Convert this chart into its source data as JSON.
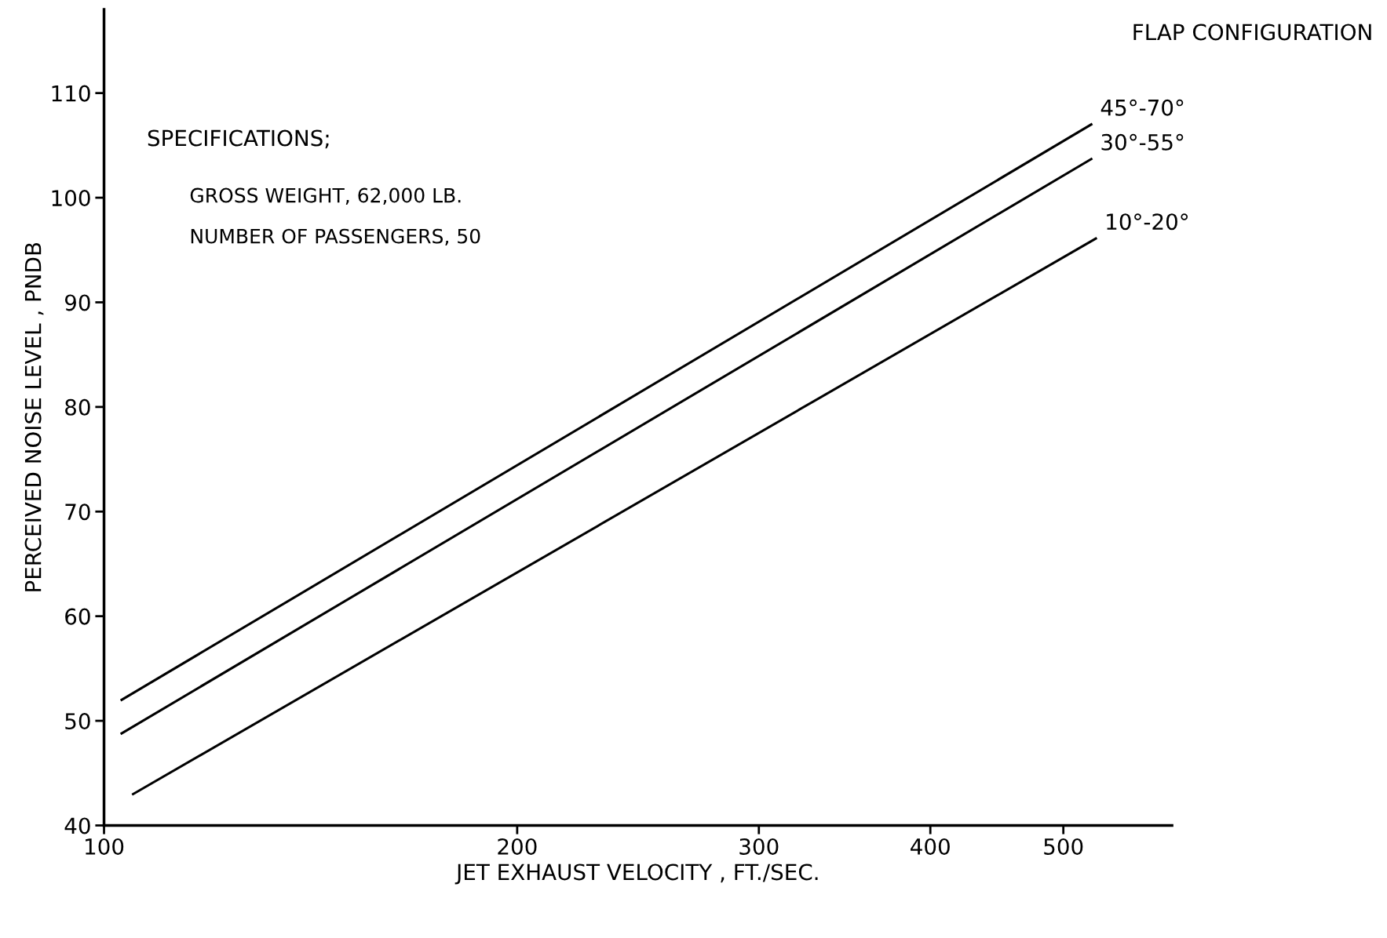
{
  "chart_data": {
    "type": "line",
    "xlabel": "JET EXHAUST VELOCITY , FT./SEC.",
    "ylabel": "PERCEIVED NOISE LEVEL , PNDB",
    "legend_title": "FLAP CONFIGURATION",
    "annotations": [
      "SPECIFICATIONS;",
      "GROSS WEIGHT, 62,000 LB.",
      "NUMBER OF PASSENGERS, 50"
    ],
    "series": [
      {
        "name": "45°-70°",
        "color": "#000000",
        "x": [
          103,
          524
        ],
        "values": [
          52.0,
          107.0
        ]
      },
      {
        "name": "30°-55°",
        "color": "#000000",
        "x": [
          103,
          524
        ],
        "values": [
          48.8,
          103.7
        ]
      },
      {
        "name": "10°-20°",
        "color": "#000000",
        "x": [
          105,
          528
        ],
        "values": [
          43.0,
          96.1
        ]
      }
    ],
    "log": "x",
    "xlim": [
      100,
      600
    ],
    "ylim": [
      40,
      118
    ],
    "xticks": [
      100,
      200,
      300,
      400,
      500
    ],
    "yticks": [
      40,
      50,
      60,
      70,
      80,
      90,
      100,
      110
    ],
    "grid": false,
    "legend": false,
    "marker": "none",
    "line_style": "solid"
  }
}
